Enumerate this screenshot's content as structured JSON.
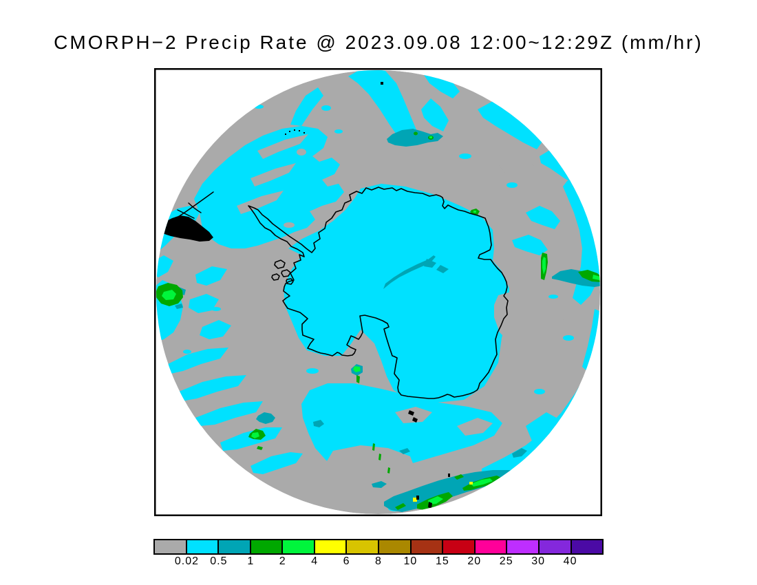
{
  "title": "CMORPH−2 Precip Rate @ 2023.09.08 12:00~12:29Z (mm/hr)",
  "colorbar": {
    "tick_labels": [
      "0.02",
      "0.5",
      "1",
      "2",
      "4",
      "6",
      "8",
      "10",
      "15",
      "20",
      "25",
      "30",
      "40"
    ],
    "segment_colors": [
      "#AAAAAA",
      "#00E1FF",
      "#00A5B5",
      "#00A800",
      "#00F53C",
      "#FFFF00",
      "#D8C400",
      "#AA8800",
      "#A63214",
      "#C80014",
      "#FF0099",
      "#BE2EFF",
      "#8428DC",
      "#4B0AA5"
    ]
  },
  "palette": {
    "background": "#FFFFFF",
    "gray": "#AAAAAA",
    "cyan": "#00E1FF",
    "teal": "#00A5B5",
    "green": "#00A800",
    "bright_green": "#00F53C",
    "yellow": "#FFFF00",
    "black": "#000000"
  }
}
